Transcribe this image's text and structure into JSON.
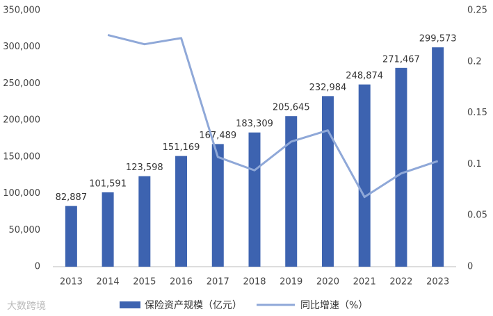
{
  "chart_data": {
    "type": "bar",
    "categories": [
      "2013",
      "2014",
      "2015",
      "2016",
      "2017",
      "2018",
      "2019",
      "2020",
      "2021",
      "2022",
      "2023"
    ],
    "series": [
      {
        "name": "保险资产规模（亿元）",
        "type": "bar",
        "color": "#3d63b0",
        "values": [
          82887,
          101591,
          123598,
          151169,
          167489,
          183309,
          205645,
          232984,
          248874,
          271467,
          299573
        ],
        "value_labels": [
          "82,887",
          "101,591",
          "123,598",
          "151,169",
          "167,489",
          "183,309",
          "205,645",
          "232,984",
          "248,874",
          "271,467",
          "299,573"
        ]
      },
      {
        "name": "同比增速（%）",
        "type": "line",
        "axis": "y2",
        "color": "#8fa8d8",
        "values": [
          null,
          0.226,
          0.217,
          0.223,
          0.107,
          0.094,
          0.122,
          0.133,
          0.068,
          0.091,
          0.103
        ]
      }
    ],
    "ylim": [
      0,
      350000
    ],
    "yticks": [
      0,
      {
        "value": 50000,
        "label": "50,000"
      },
      {
        "value": 100000,
        "label": "100,000"
      },
      {
        "value": 150000,
        "label": "150,000"
      },
      {
        "value": 200000,
        "label": "200,000"
      },
      {
        "value": 250000,
        "label": "250,000"
      },
      {
        "value": 300000,
        "label": "300,000"
      },
      {
        "value": 350000,
        "label": "350,000"
      }
    ],
    "y2lim": [
      0,
      0.25
    ],
    "y2ticks": [
      0,
      0.05,
      0.1,
      0.15,
      0.2,
      0.25
    ],
    "grid": false,
    "legend": "bottom",
    "watermark": "大数跨境"
  }
}
